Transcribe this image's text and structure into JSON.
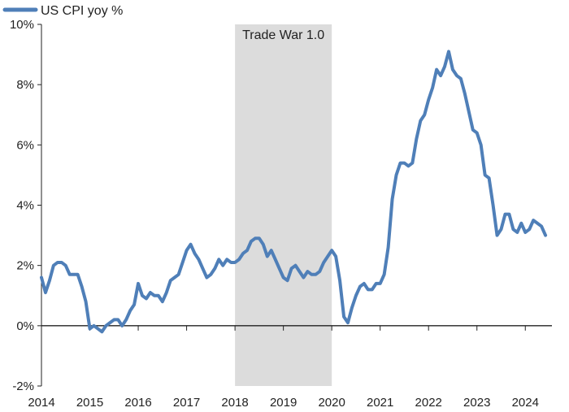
{
  "chart_data": {
    "type": "line",
    "title": "",
    "xlabel": "",
    "ylabel": "",
    "xlim": [
      2014.0,
      2024.55
    ],
    "ylim": [
      -2,
      10
    ],
    "yticks": [
      -2,
      0,
      2,
      4,
      6,
      8,
      10
    ],
    "ytick_labels": [
      "-2%",
      "0%",
      "2%",
      "4%",
      "6%",
      "8%",
      "10%"
    ],
    "xticks": [
      2014,
      2015,
      2016,
      2017,
      2018,
      2019,
      2020,
      2021,
      2022,
      2023,
      2024
    ],
    "xtick_labels": [
      "2014",
      "2015",
      "2016",
      "2017",
      "2018",
      "2019",
      "2020",
      "2021",
      "2022",
      "2023",
      "2024"
    ],
    "grid": false,
    "legend_position": "top-left",
    "colors": {
      "series": "#4f7fb8",
      "shade": "#dcdcdc",
      "axis": "#222222"
    },
    "annotations": [
      {
        "type": "shaded-region",
        "label": "Trade War 1.0",
        "x_start": 2018.0,
        "x_end": 2020.0
      }
    ],
    "series": [
      {
        "name": "US CPI yoy %",
        "x_start": "2014-01",
        "frequency": "monthly",
        "values": [
          1.6,
          1.1,
          1.5,
          2.0,
          2.1,
          2.1,
          2.0,
          1.7,
          1.7,
          1.7,
          1.3,
          0.8,
          -0.1,
          0.0,
          -0.1,
          -0.2,
          0.0,
          0.1,
          0.2,
          0.2,
          0.0,
          0.2,
          0.5,
          0.7,
          1.4,
          1.0,
          0.9,
          1.1,
          1.0,
          1.0,
          0.8,
          1.1,
          1.5,
          1.6,
          1.7,
          2.1,
          2.5,
          2.7,
          2.4,
          2.2,
          1.9,
          1.6,
          1.7,
          1.9,
          2.2,
          2.0,
          2.2,
          2.1,
          2.1,
          2.2,
          2.4,
          2.5,
          2.8,
          2.9,
          2.9,
          2.7,
          2.3,
          2.5,
          2.2,
          1.9,
          1.6,
          1.5,
          1.9,
          2.0,
          1.8,
          1.6,
          1.8,
          1.7,
          1.7,
          1.8,
          2.1,
          2.3,
          2.5,
          2.3,
          1.5,
          0.3,
          0.1,
          0.6,
          1.0,
          1.3,
          1.4,
          1.2,
          1.2,
          1.4,
          1.4,
          1.7,
          2.6,
          4.2,
          5.0,
          5.4,
          5.4,
          5.3,
          5.4,
          6.2,
          6.8,
          7.0,
          7.5,
          7.9,
          8.5,
          8.3,
          8.6,
          9.1,
          8.5,
          8.3,
          8.2,
          7.7,
          7.1,
          6.5,
          6.4,
          6.0,
          5.0,
          4.9,
          4.0,
          3.0,
          3.2,
          3.7,
          3.7,
          3.2,
          3.1,
          3.4,
          3.1,
          3.2,
          3.5,
          3.4,
          3.3,
          3.0
        ]
      }
    ]
  }
}
